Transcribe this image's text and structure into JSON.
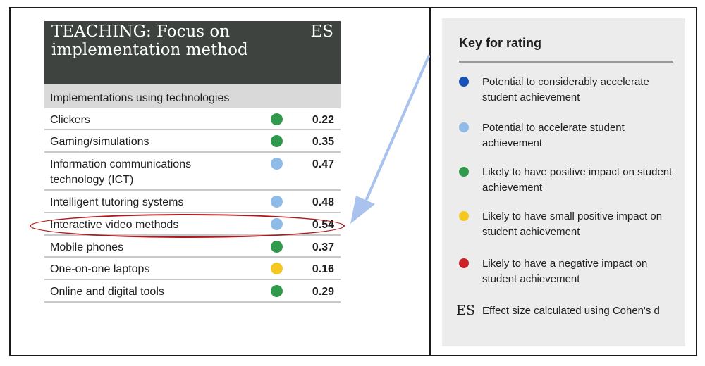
{
  "table": {
    "title": "TEACHING: Focus on implementation method",
    "es_header": "ES",
    "section_heading": "Implementations using technologies",
    "rows": [
      {
        "label": "Clickers",
        "rating": "green",
        "es": "0.22"
      },
      {
        "label": "Gaming/simulations",
        "rating": "green",
        "es": "0.35"
      },
      {
        "label": "Information communications technology (ICT)",
        "rating": "light-blue",
        "es": "0.47"
      },
      {
        "label": "Intelligent tutoring systems",
        "rating": "light-blue",
        "es": "0.48"
      },
      {
        "label": "Interactive video methods",
        "rating": "light-blue",
        "es": "0.54"
      },
      {
        "label": "Mobile phones",
        "rating": "green",
        "es": "0.37"
      },
      {
        "label": "One-on-one laptops",
        "rating": "yellow",
        "es": "0.16"
      },
      {
        "label": "Online and digital tools",
        "rating": "green",
        "es": "0.29"
      }
    ]
  },
  "key": {
    "title": "Key for rating",
    "items": [
      {
        "rating": "dark-blue",
        "text": "Potential to considerably accelerate student achievement"
      },
      {
        "rating": "light-blue",
        "text": "Potential to accelerate student achievement"
      },
      {
        "rating": "green",
        "text": "Likely to have positive impact on student achievement"
      },
      {
        "rating": "yellow",
        "text": "Likely to have small positive impact on student achievement"
      },
      {
        "rating": "red",
        "text": "Likely to have a negative impact on student achievement"
      }
    ],
    "es_symbol": "ES",
    "es_text": "Effect size calculated using Cohen's d"
  },
  "colors": {
    "dark-blue": "#1652b8",
    "light-blue": "#8ebbe8",
    "green": "#2f9a4c",
    "yellow": "#f4c81f",
    "red": "#cc2127",
    "highlight": "#b0181b",
    "arrow": "#a9c3ee",
    "header_bg": "#3f4340"
  }
}
